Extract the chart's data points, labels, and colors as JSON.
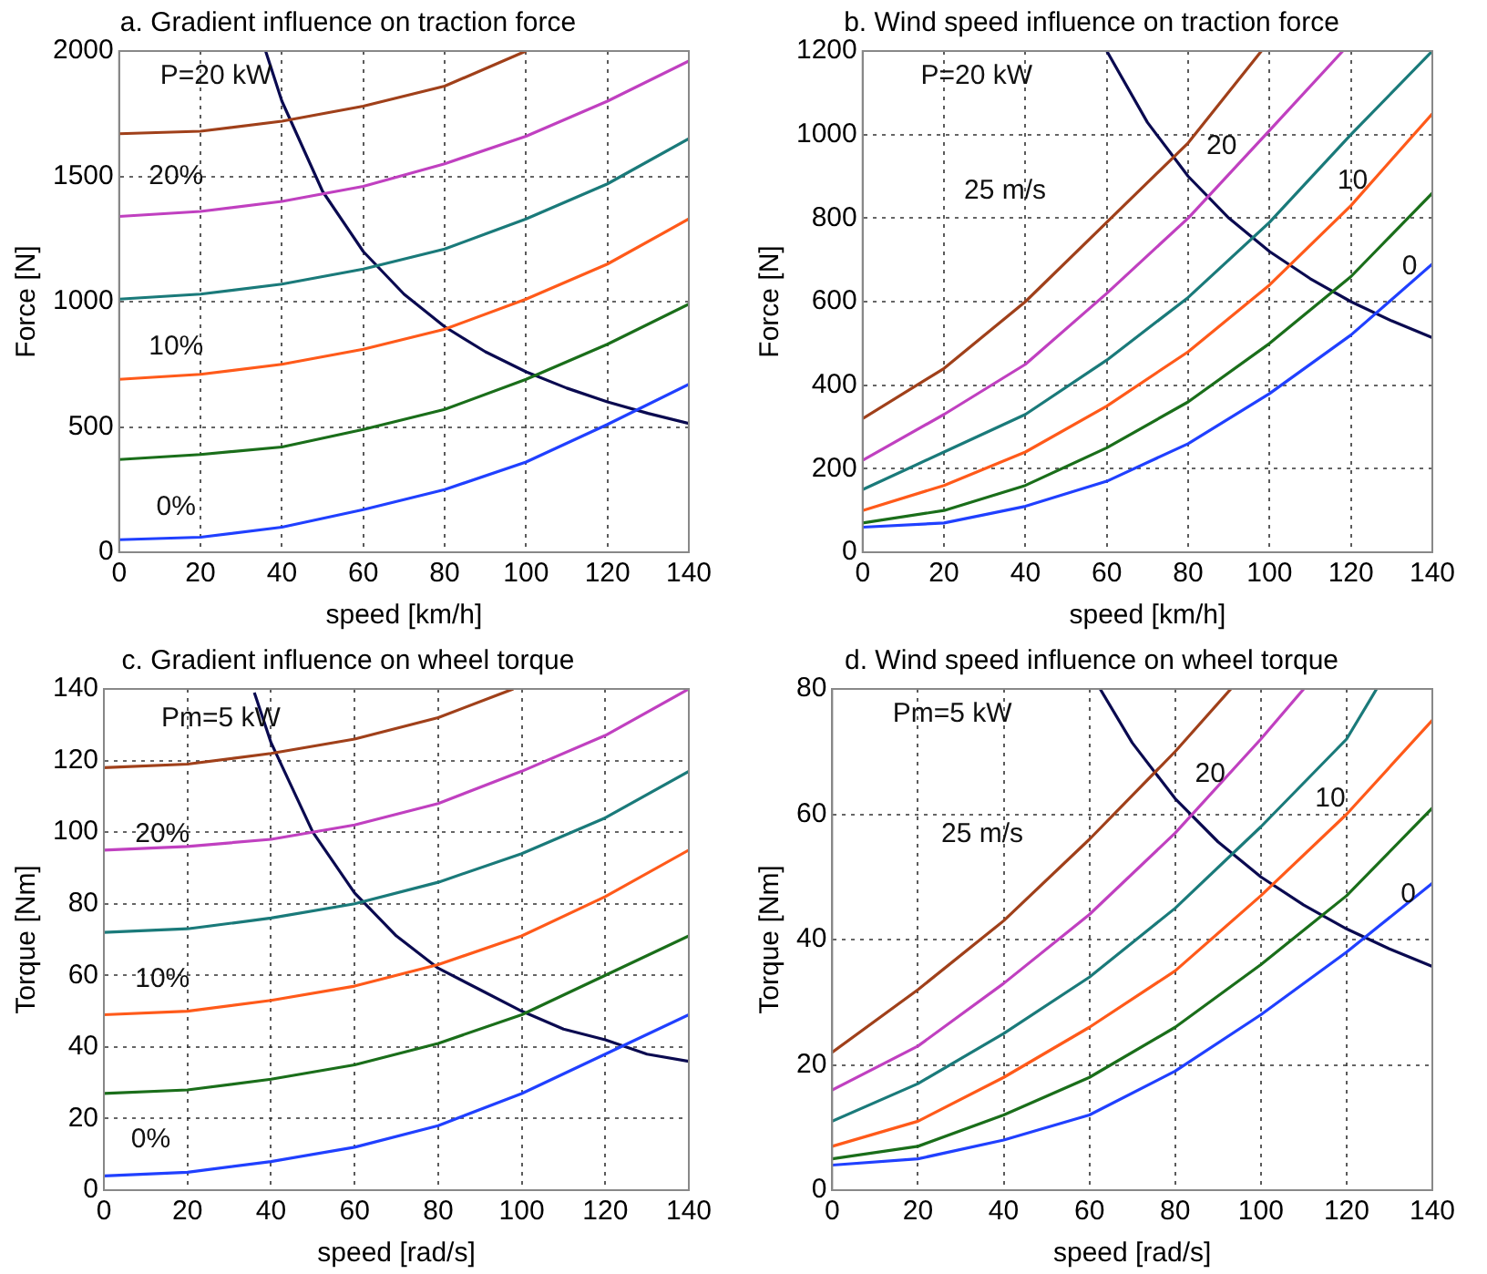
{
  "chart_data": [
    {
      "type": "line",
      "title": "a. Gradient influence on traction force",
      "xlabel": "speed [km/h]",
      "ylabel": "Force [N]",
      "xlim": [
        0,
        140
      ],
      "ylim": [
        0,
        2000
      ],
      "xticks": [
        0,
        20,
        40,
        60,
        80,
        100,
        120,
        140
      ],
      "yticks": [
        0,
        500,
        1000,
        1500,
        2000
      ],
      "grid": true,
      "series": [
        {
          "color": "#2040ff",
          "x": [
            0,
            20,
            40,
            60,
            80,
            100,
            120,
            140
          ],
          "values": [
            50,
            60,
            100,
            170,
            250,
            360,
            510,
            670
          ]
        },
        {
          "color": "#1a6e1a",
          "x": [
            0,
            20,
            40,
            60,
            80,
            100,
            120,
            140
          ],
          "values": [
            370,
            390,
            420,
            490,
            570,
            690,
            830,
            990
          ]
        },
        {
          "color": "#ff5a1a",
          "x": [
            0,
            20,
            40,
            60,
            80,
            100,
            120,
            140
          ],
          "values": [
            690,
            710,
            750,
            810,
            890,
            1010,
            1150,
            1330
          ]
        },
        {
          "color": "#1a7a7a",
          "x": [
            0,
            20,
            40,
            60,
            80,
            100,
            120,
            140
          ],
          "values": [
            1010,
            1030,
            1070,
            1130,
            1210,
            1330,
            1470,
            1650
          ]
        },
        {
          "color": "#c040c0",
          "x": [
            0,
            20,
            40,
            60,
            80,
            100,
            120,
            140
          ],
          "values": [
            1340,
            1360,
            1400,
            1460,
            1550,
            1660,
            1800,
            1960
          ]
        },
        {
          "color": "#a0401a",
          "x": [
            0,
            20,
            40,
            60,
            80,
            100
          ],
          "values": [
            1670,
            1680,
            1720,
            1780,
            1860,
            2000
          ]
        },
        {
          "color": "#0a0a50",
          "x": [
            36,
            40,
            50,
            60,
            70,
            80,
            90,
            100,
            110,
            120,
            130,
            140
          ],
          "values": [
            2000,
            1800,
            1440,
            1200,
            1030,
            900,
            800,
            720,
            655,
            600,
            554,
            514
          ]
        }
      ],
      "annotations": [
        "P=20 kW",
        "20%",
        "10%",
        "0%"
      ]
    },
    {
      "type": "line",
      "title": "b. Wind speed influence on traction force",
      "xlabel": "speed [km/h]",
      "ylabel": "Force [N]",
      "xlim": [
        0,
        140
      ],
      "ylim": [
        0,
        1200
      ],
      "xticks": [
        0,
        20,
        40,
        60,
        80,
        100,
        120,
        140
      ],
      "yticks": [
        0,
        200,
        400,
        600,
        800,
        1000,
        1200
      ],
      "grid": true,
      "series": [
        {
          "color": "#2040ff",
          "x": [
            0,
            20,
            40,
            60,
            80,
            100,
            120,
            140
          ],
          "values": [
            60,
            70,
            110,
            170,
            260,
            380,
            520,
            690
          ]
        },
        {
          "color": "#1a6e1a",
          "x": [
            0,
            20,
            40,
            60,
            80,
            100,
            120,
            140
          ],
          "values": [
            70,
            100,
            160,
            250,
            360,
            500,
            660,
            860
          ]
        },
        {
          "color": "#ff5a1a",
          "x": [
            0,
            20,
            40,
            60,
            80,
            100,
            120,
            140
          ],
          "values": [
            100,
            160,
            240,
            350,
            480,
            640,
            830,
            1050
          ]
        },
        {
          "color": "#1a7a7a",
          "x": [
            0,
            20,
            40,
            60,
            80,
            100,
            120,
            140
          ],
          "values": [
            150,
            240,
            330,
            460,
            610,
            790,
            1000,
            1200
          ]
        },
        {
          "color": "#c040c0",
          "x": [
            0,
            20,
            40,
            60,
            80,
            100,
            118
          ],
          "values": [
            220,
            330,
            450,
            620,
            800,
            1010,
            1200
          ]
        },
        {
          "color": "#a0401a",
          "x": [
            0,
            20,
            40,
            60,
            80,
            98
          ],
          "values": [
            320,
            440,
            600,
            790,
            980,
            1200
          ]
        },
        {
          "color": "#0a0a50",
          "x": [
            60,
            70,
            80,
            90,
            100,
            110,
            120,
            130,
            140
          ],
          "values": [
            1200,
            1029,
            900,
            800,
            720,
            655,
            600,
            554,
            514
          ]
        }
      ],
      "annotations": [
        "P=20 kW",
        "25 m/s",
        "20",
        "10",
        "0"
      ]
    },
    {
      "type": "line",
      "title": "c. Gradient influence on wheel torque",
      "xlabel": "speed [rad/s]",
      "ylabel": "Torque [Nm]",
      "xlim": [
        0,
        140
      ],
      "ylim": [
        0,
        140
      ],
      "xticks": [
        0,
        20,
        40,
        60,
        80,
        100,
        120,
        140
      ],
      "yticks": [
        0,
        20,
        40,
        60,
        80,
        100,
        120,
        140
      ],
      "grid": true,
      "series": [
        {
          "color": "#2040ff",
          "x": [
            0,
            20,
            40,
            60,
            80,
            100,
            120,
            140
          ],
          "values": [
            4,
            5,
            8,
            12,
            18,
            27,
            38,
            49
          ]
        },
        {
          "color": "#1a6e1a",
          "x": [
            0,
            20,
            40,
            60,
            80,
            100,
            120,
            140
          ],
          "values": [
            27,
            28,
            31,
            35,
            41,
            49,
            60,
            71
          ]
        },
        {
          "color": "#ff5a1a",
          "x": [
            0,
            20,
            40,
            60,
            80,
            100,
            120,
            140
          ],
          "values": [
            49,
            50,
            53,
            57,
            63,
            71,
            82,
            95
          ]
        },
        {
          "color": "#1a7a7a",
          "x": [
            0,
            20,
            40,
            60,
            80,
            100,
            120,
            140
          ],
          "values": [
            72,
            73,
            76,
            80,
            86,
            94,
            104,
            117
          ]
        },
        {
          "color": "#c040c0",
          "x": [
            0,
            20,
            40,
            60,
            80,
            100,
            120,
            140
          ],
          "values": [
            95,
            96,
            98,
            102,
            108,
            117,
            127,
            140
          ]
        },
        {
          "color": "#a0401a",
          "x": [
            0,
            20,
            40,
            60,
            80,
            98
          ],
          "values": [
            118,
            119,
            122,
            126,
            132,
            140
          ]
        },
        {
          "color": "#0a0a50",
          "x": [
            36,
            40,
            50,
            60,
            70,
            80,
            90,
            100,
            110,
            120,
            130,
            140
          ],
          "values": [
            139,
            125,
            100,
            83,
            71,
            62,
            56,
            50,
            45,
            42,
            38,
            36
          ]
        }
      ],
      "annotations": [
        "Pm=5 kW",
        "20%",
        "10%",
        "0%"
      ]
    },
    {
      "type": "line",
      "title": "d. Wind speed influence on wheel torque",
      "xlabel": "speed [rad/s]",
      "ylabel": "Torque [Nm]",
      "xlim": [
        0,
        140
      ],
      "ylim": [
        0,
        80
      ],
      "xticks": [
        0,
        20,
        40,
        60,
        80,
        100,
        120,
        140
      ],
      "yticks": [
        0,
        20,
        40,
        60,
        80
      ],
      "grid": true,
      "series": [
        {
          "color": "#2040ff",
          "x": [
            0,
            20,
            40,
            60,
            80,
            100,
            120,
            140
          ],
          "values": [
            4,
            5,
            8,
            12,
            19,
            28,
            38,
            49
          ]
        },
        {
          "color": "#1a6e1a",
          "x": [
            0,
            20,
            40,
            60,
            80,
            100,
            120,
            140
          ],
          "values": [
            5,
            7,
            12,
            18,
            26,
            36,
            47,
            61
          ]
        },
        {
          "color": "#ff5a1a",
          "x": [
            0,
            20,
            40,
            60,
            80,
            100,
            120,
            140
          ],
          "values": [
            7,
            11,
            18,
            26,
            35,
            47,
            60,
            75
          ]
        },
        {
          "color": "#1a7a7a",
          "x": [
            0,
            20,
            40,
            60,
            80,
            100,
            120,
            127
          ],
          "values": [
            11,
            17,
            25,
            34,
            45,
            58,
            72,
            80
          ]
        },
        {
          "color": "#c040c0",
          "x": [
            0,
            20,
            40,
            60,
            80,
            100,
            110
          ],
          "values": [
            16,
            23,
            33,
            44,
            57,
            72,
            80
          ]
        },
        {
          "color": "#a0401a",
          "x": [
            0,
            20,
            40,
            60,
            80,
            93
          ],
          "values": [
            22,
            32,
            43,
            56,
            70,
            80
          ]
        },
        {
          "color": "#0a0a50",
          "x": [
            62.5,
            70,
            80,
            90,
            100,
            110,
            120,
            130,
            140
          ],
          "values": [
            80,
            71.4,
            62.5,
            55.6,
            50,
            45.5,
            41.7,
            38.5,
            35.7
          ]
        }
      ],
      "annotations": [
        "Pm=5 kW",
        "25 m/s",
        "20",
        "10",
        "0"
      ]
    }
  ]
}
